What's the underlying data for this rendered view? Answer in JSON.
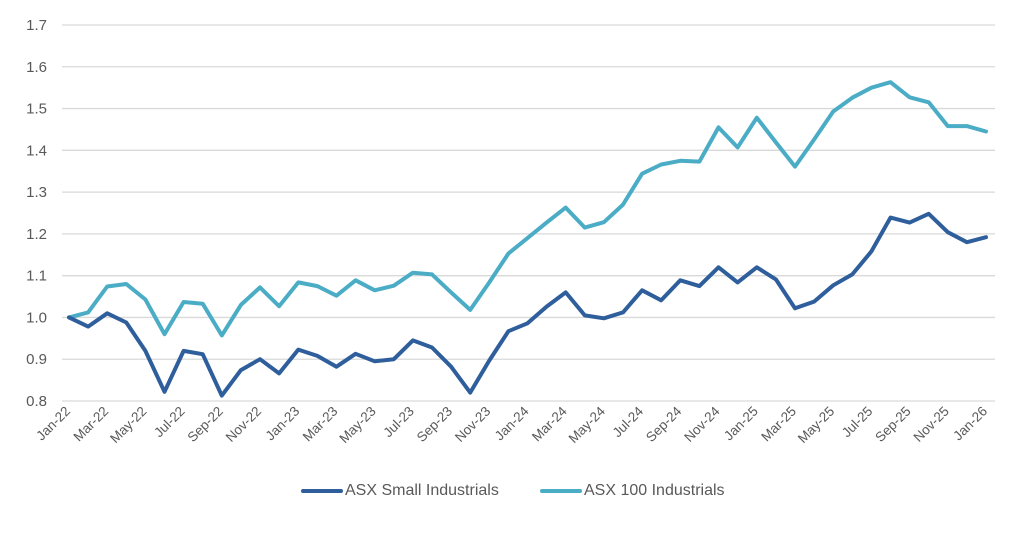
{
  "chart_data": {
    "type": "line",
    "title": "",
    "xlabel": "",
    "ylabel": "",
    "ylim": [
      0.8,
      1.7
    ],
    "yticks": [
      "0.8",
      "0.9",
      "1.0",
      "1.1",
      "1.2",
      "1.3",
      "1.4",
      "1.5",
      "1.6",
      "1.7"
    ],
    "grid": true,
    "legend_position": "bottom",
    "x": [
      "Jan-22",
      "Feb-22",
      "Mar-22",
      "Apr-22",
      "May-22",
      "Jun-22",
      "Jul-22",
      "Aug-22",
      "Sep-22",
      "Oct-22",
      "Nov-22",
      "Dec-22",
      "Jan-23",
      "Feb-23",
      "Mar-23",
      "Apr-23",
      "May-23",
      "Jun-23",
      "Jul-23",
      "Aug-23",
      "Sep-23",
      "Oct-23",
      "Nov-23",
      "Dec-23",
      "Jan-24",
      "Feb-24",
      "Mar-24",
      "Apr-24",
      "May-24",
      "Jun-24",
      "Jul-24",
      "Aug-24",
      "Sep-24",
      "Oct-24",
      "Nov-24",
      "Dec-24",
      "Jan-25",
      "Feb-25",
      "Mar-25",
      "Apr-25",
      "May-25",
      "Jun-25",
      "Jul-25",
      "Aug-25",
      "Sep-25",
      "Oct-25",
      "Nov-25",
      "Dec-25",
      "Jan-26"
    ],
    "xtick_labels": [
      "Jan-22",
      "Mar-22",
      "May-22",
      "Jul-22",
      "Sep-22",
      "Nov-22",
      "Jan-23",
      "Mar-23",
      "May-23",
      "Jul-23",
      "Sep-23",
      "Nov-23",
      "Jan-24",
      "Mar-24",
      "May-24",
      "Jul-24",
      "Sep-24",
      "Nov-24",
      "Jan-25",
      "Mar-25",
      "May-25",
      "Jul-25",
      "Sep-25",
      "Nov-25",
      "Jan-26"
    ],
    "series": [
      {
        "name": "ASX Small Industrials",
        "color": "#2E5E9B",
        "values": [
          1.0,
          0.978,
          1.01,
          0.988,
          0.92,
          0.822,
          0.92,
          0.912,
          0.813,
          0.874,
          0.9,
          0.866,
          0.923,
          0.908,
          0.882,
          0.913,
          0.895,
          0.9,
          0.945,
          0.928,
          0.882,
          0.82,
          0.897,
          0.967,
          0.986,
          1.026,
          1.06,
          1.005,
          0.998,
          1.012,
          1.065,
          1.041,
          1.089,
          1.075,
          1.12,
          1.084,
          1.12,
          1.091,
          1.022,
          1.038,
          1.077,
          1.103,
          1.158,
          1.239,
          1.227,
          1.248,
          1.204,
          1.18,
          1.192
        ]
      },
      {
        "name": "ASX 100 Industrials",
        "color": "#4BACC6",
        "values": [
          1.0,
          1.012,
          1.074,
          1.08,
          1.043,
          0.96,
          1.037,
          1.033,
          0.957,
          1.03,
          1.072,
          1.027,
          1.084,
          1.075,
          1.052,
          1.089,
          1.065,
          1.076,
          1.107,
          1.103,
          1.06,
          1.018,
          1.084,
          1.153,
          1.19,
          1.227,
          1.263,
          1.215,
          1.228,
          1.27,
          1.344,
          1.366,
          1.375,
          1.373,
          1.455,
          1.407,
          1.478,
          1.419,
          1.361,
          1.426,
          1.493,
          1.526,
          1.55,
          1.563,
          1.527,
          1.515,
          1.458,
          1.458,
          1.445
        ]
      }
    ]
  }
}
